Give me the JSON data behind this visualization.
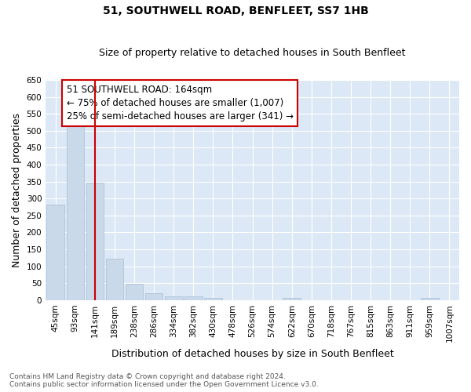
{
  "title": "51, SOUTHWELL ROAD, BENFLEET, SS7 1HB",
  "subtitle": "Size of property relative to detached houses in South Benfleet",
  "xlabel": "Distribution of detached houses by size in South Benfleet",
  "ylabel": "Number of detached properties",
  "categories": [
    "45sqm",
    "93sqm",
    "141sqm",
    "189sqm",
    "238sqm",
    "286sqm",
    "334sqm",
    "382sqm",
    "430sqm",
    "478sqm",
    "526sqm",
    "574sqm",
    "622sqm",
    "670sqm",
    "718sqm",
    "767sqm",
    "815sqm",
    "863sqm",
    "911sqm",
    "959sqm",
    "1007sqm"
  ],
  "values": [
    282,
    522,
    347,
    122,
    48,
    20,
    11,
    11,
    7,
    0,
    0,
    0,
    7,
    0,
    0,
    0,
    0,
    0,
    0,
    7,
    0
  ],
  "bar_color": "#c9d9ea",
  "bar_edge_color": "#aec4d8",
  "vline_x": 2,
  "vline_color": "#cc0000",
  "annotation_text": "51 SOUTHWELL ROAD: 164sqm\n← 75% of detached houses are smaller (1,007)\n25% of semi-detached houses are larger (341) →",
  "annotation_box_color": "#cc0000",
  "ylim": [
    0,
    650
  ],
  "yticks": [
    0,
    50,
    100,
    150,
    200,
    250,
    300,
    350,
    400,
    450,
    500,
    550,
    600,
    650
  ],
  "footer": "Contains HM Land Registry data © Crown copyright and database right 2024.\nContains public sector information licensed under the Open Government Licence v3.0.",
  "fig_bg_color": "#ffffff",
  "plot_bg_color": "#dce8f5",
  "grid_color": "#ffffff",
  "title_fontsize": 10,
  "subtitle_fontsize": 9,
  "axis_label_fontsize": 9,
  "tick_fontsize": 7.5,
  "annotation_fontsize": 8.5,
  "footer_fontsize": 6.5
}
